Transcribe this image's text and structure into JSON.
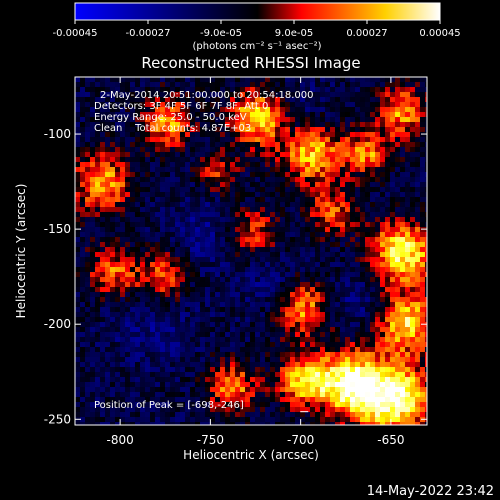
{
  "chart_data": {
    "type": "heatmap",
    "title": "Reconstructed RHESSI Image",
    "xlabel": "Heliocentric X (arcsec)",
    "ylabel": "Heliocentric Y (arcsec)",
    "xlim": [
      -825,
      -630
    ],
    "ylim": [
      -253,
      -70
    ],
    "xticks": [
      "-800",
      "-750",
      "-700",
      "-650"
    ],
    "xtick_values": [
      -800,
      -750,
      -700,
      -650
    ],
    "yticks": [
      "-100",
      "-150",
      "-200",
      "-250"
    ],
    "ytick_values": [
      -100,
      -150,
      -200,
      -250
    ],
    "colorbar": {
      "range": [
        -0.00045,
        0.00045
      ],
      "ticks": [
        "-0.00045",
        "-0.00027",
        "-9.0e-05",
        "9.0e-05",
        "0.00027",
        "0.00045"
      ],
      "tick_values": [
        -0.00045,
        -0.00027,
        -9e-05,
        9e-05,
        0.00027,
        0.00045
      ],
      "unit_label": "(photons cm⁻² s⁻¹ asec⁻²)",
      "colormap": [
        "#0000ff",
        "#000000",
        "#ff0000",
        "#ffff00",
        "#ffffff"
      ]
    },
    "peak": [
      -698,
      -246
    ],
    "grid": false
  },
  "annotations": {
    "line1": "2-May-2014 20:51:00.000 to 20:54:18.000",
    "line2": "Detectors: 3F 4F 5F 6F 7F 8F, Att 0",
    "line3": "Energy Range: 25.0 - 50.0 keV",
    "line4": "Clean    Total counts: 4.87E+03",
    "peak_label": "Position of Peak = [-698,-246]"
  },
  "footer": {
    "timestamp": "14-May-2022 23:42"
  }
}
